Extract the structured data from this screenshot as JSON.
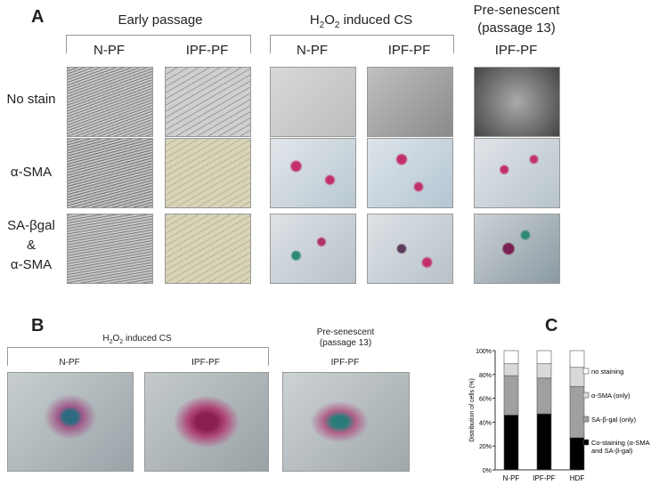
{
  "panel_a": {
    "label": "A",
    "groups": [
      "Early passage",
      "H2O2 induced CS",
      "Pre-senescent (passage 13)"
    ],
    "columns": [
      "N-PF",
      "IPF-PF",
      "N-PF",
      "IPF-PF",
      "IPF-PF"
    ],
    "rows": [
      "No stain",
      "α-SMA",
      "SA-βgal & α-SMA"
    ],
    "h2o2_parts": {
      "a": "H",
      "s1": "2",
      "b": "O",
      "s2": "2",
      "c": " induced CS"
    },
    "pre_lines": [
      "Pre-senescent",
      "(passage 13)"
    ]
  },
  "panel_b": {
    "label": "B",
    "group": "induced CS",
    "pre_lines": [
      "Pre-senescent",
      "(passage 13)"
    ],
    "columns": [
      "N-PF",
      "IPF-PF",
      "IPF-PF"
    ]
  },
  "panel_c": {
    "label": "C"
  },
  "chart_data": {
    "type": "bar",
    "stacked": true,
    "categories": [
      "N-PF",
      "IPF-PF",
      "HDF"
    ],
    "ylabel": "Distribution of cells (%)",
    "ylim": [
      0,
      100
    ],
    "yticks": [
      "0%",
      "20%",
      "40%",
      "60%",
      "80%",
      "100%"
    ],
    "legend_position": "right",
    "series": [
      {
        "name": "Co-staining (α-SMA and SA-β-gal)",
        "color": "#000000",
        "values": [
          46,
          47,
          27
        ]
      },
      {
        "name": "SA-β-gal (only)",
        "color": "#a0a0a0",
        "values": [
          33,
          30,
          43
        ]
      },
      {
        "name": "α-SMA (only)",
        "color": "#d9d9d9",
        "values": [
          10,
          12,
          16
        ]
      },
      {
        "name": "no staining",
        "color": "#ffffff",
        "values": [
          11,
          11,
          14
        ]
      }
    ]
  }
}
